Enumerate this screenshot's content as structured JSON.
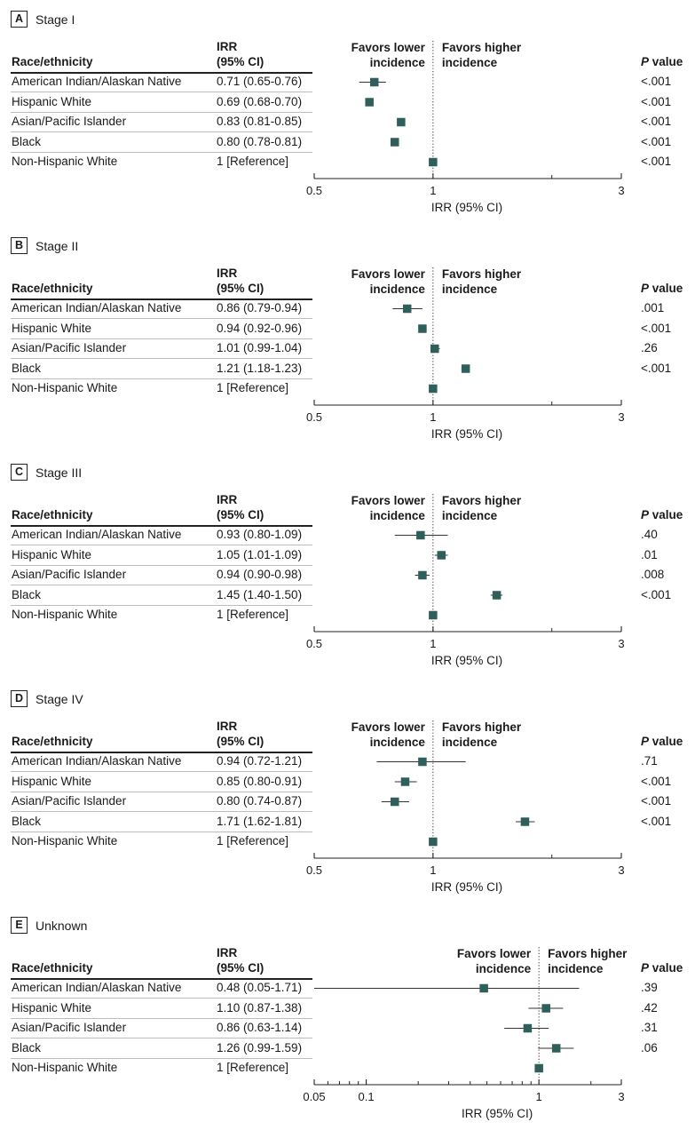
{
  "colors": {
    "marker": "#2e5f5a",
    "text": "#1a1a1a",
    "rule": "#bdbdbd"
  },
  "headers": {
    "race": "Race/ethnicity",
    "irr_line1": "IRR",
    "irr_line2": "(95% CI)",
    "pvalue_italic": "P",
    "pvalue_rest": " value",
    "favors_lower_1": "Favors lower",
    "favors_lower_2": "incidence",
    "favors_higher_1": "Favors higher",
    "favors_higher_2": "incidence",
    "xlabel": "IRR (95% CI)"
  },
  "chart_data": [
    {
      "type": "forest",
      "panel": "A",
      "title": "Stage I",
      "xscale": "log",
      "xlim": [
        0.5,
        3
      ],
      "ticks": [
        {
          "v": 0.5,
          "label": "0.5"
        },
        {
          "v": 1,
          "label": "1"
        },
        {
          "v": 3,
          "label": "3"
        }
      ],
      "minor_ticks": [
        2
      ],
      "reference": 1,
      "xlabel": "IRR (95% CI)",
      "rows": [
        {
          "group": "American Indian/Alaskan Native",
          "irr_text": "0.71 (0.65-0.76)",
          "irr": 0.71,
          "lo": 0.65,
          "hi": 0.76,
          "p": "<.001"
        },
        {
          "group": "Hispanic White",
          "irr_text": "0.69 (0.68-0.70)",
          "irr": 0.69,
          "lo": 0.68,
          "hi": 0.7,
          "p": "<.001"
        },
        {
          "group": "Asian/Pacific Islander",
          "irr_text": "0.83 (0.81-0.85)",
          "irr": 0.83,
          "lo": 0.81,
          "hi": 0.85,
          "p": "<.001"
        },
        {
          "group": "Black",
          "irr_text": "0.80 (0.78-0.81)",
          "irr": 0.8,
          "lo": 0.78,
          "hi": 0.81,
          "p": "<.001"
        },
        {
          "group": "Non-Hispanic White",
          "irr_text": "1 [Reference]",
          "irr": 1,
          "lo": 1,
          "hi": 1,
          "p": "<.001"
        }
      ]
    },
    {
      "type": "forest",
      "panel": "B",
      "title": "Stage II",
      "xscale": "log",
      "xlim": [
        0.5,
        3
      ],
      "ticks": [
        {
          "v": 0.5,
          "label": "0.5"
        },
        {
          "v": 1,
          "label": "1"
        },
        {
          "v": 3,
          "label": "3"
        }
      ],
      "minor_ticks": [
        2
      ],
      "reference": 1,
      "xlabel": "IRR (95% CI)",
      "rows": [
        {
          "group": "American Indian/Alaskan Native",
          "irr_text": "0.86 (0.79-0.94)",
          "irr": 0.86,
          "lo": 0.79,
          "hi": 0.94,
          "p": ".001"
        },
        {
          "group": "Hispanic White",
          "irr_text": "0.94 (0.92-0.96)",
          "irr": 0.94,
          "lo": 0.92,
          "hi": 0.96,
          "p": "<.001"
        },
        {
          "group": "Asian/Pacific Islander",
          "irr_text": "1.01 (0.99-1.04)",
          "irr": 1.01,
          "lo": 0.99,
          "hi": 1.04,
          "p": ".26"
        },
        {
          "group": "Black",
          "irr_text": "1.21 (1.18-1.23)",
          "irr": 1.21,
          "lo": 1.18,
          "hi": 1.23,
          "p": "<.001"
        },
        {
          "group": "Non-Hispanic White",
          "irr_text": "1 [Reference]",
          "irr": 1,
          "lo": 1,
          "hi": 1,
          "p": ""
        }
      ]
    },
    {
      "type": "forest",
      "panel": "C",
      "title": "Stage III",
      "xscale": "log",
      "xlim": [
        0.5,
        3
      ],
      "ticks": [
        {
          "v": 0.5,
          "label": "0.5"
        },
        {
          "v": 1,
          "label": "1"
        },
        {
          "v": 3,
          "label": "3"
        }
      ],
      "minor_ticks": [
        2
      ],
      "reference": 1,
      "xlabel": "IRR (95% CI)",
      "rows": [
        {
          "group": "American Indian/Alaskan Native",
          "irr_text": "0.93 (0.80-1.09)",
          "irr": 0.93,
          "lo": 0.8,
          "hi": 1.09,
          "p": ".40"
        },
        {
          "group": "Hispanic White",
          "irr_text": "1.05 (1.01-1.09)",
          "irr": 1.05,
          "lo": 1.01,
          "hi": 1.09,
          "p": ".01"
        },
        {
          "group": "Asian/Pacific Islander",
          "irr_text": "0.94 (0.90-0.98)",
          "irr": 0.94,
          "lo": 0.9,
          "hi": 0.98,
          "p": ".008"
        },
        {
          "group": "Black",
          "irr_text": "1.45 (1.40-1.50)",
          "irr": 1.45,
          "lo": 1.4,
          "hi": 1.5,
          "p": "<.001"
        },
        {
          "group": "Non-Hispanic White",
          "irr_text": "1 [Reference]",
          "irr": 1,
          "lo": 1,
          "hi": 1,
          "p": ""
        }
      ]
    },
    {
      "type": "forest",
      "panel": "D",
      "title": "Stage IV",
      "xscale": "log",
      "xlim": [
        0.5,
        3
      ],
      "ticks": [
        {
          "v": 0.5,
          "label": "0.5"
        },
        {
          "v": 1,
          "label": "1"
        },
        {
          "v": 3,
          "label": "3"
        }
      ],
      "minor_ticks": [
        2
      ],
      "reference": 1,
      "xlabel": "IRR (95% CI)",
      "rows": [
        {
          "group": "American Indian/Alaskan Native",
          "irr_text": "0.94 (0.72-1.21)",
          "irr": 0.94,
          "lo": 0.72,
          "hi": 1.21,
          "p": ".71"
        },
        {
          "group": "Hispanic White",
          "irr_text": "0.85 (0.80-0.91)",
          "irr": 0.85,
          "lo": 0.8,
          "hi": 0.91,
          "p": "<.001"
        },
        {
          "group": "Asian/Pacific Islander",
          "irr_text": "0.80 (0.74-0.87)",
          "irr": 0.8,
          "lo": 0.74,
          "hi": 0.87,
          "p": "<.001"
        },
        {
          "group": "Black",
          "irr_text": "1.71 (1.62-1.81)",
          "irr": 1.71,
          "lo": 1.62,
          "hi": 1.81,
          "p": "<.001"
        },
        {
          "group": "Non-Hispanic White",
          "irr_text": "1 [Reference]",
          "irr": 1,
          "lo": 1,
          "hi": 1,
          "p": ""
        }
      ]
    },
    {
      "type": "forest",
      "panel": "E",
      "title": "Unknown",
      "xscale": "log",
      "xlim": [
        0.05,
        3
      ],
      "ticks": [
        {
          "v": 0.05,
          "label": "0.05"
        },
        {
          "v": 0.1,
          "label": "0.1"
        },
        {
          "v": 1,
          "label": "1"
        },
        {
          "v": 3,
          "label": "3"
        }
      ],
      "minor_ticks": [
        0.06,
        0.07,
        0.08,
        0.09,
        0.2,
        0.3,
        0.4,
        0.5,
        0.6,
        0.7,
        0.8,
        0.9,
        2
      ],
      "reference": 1,
      "xlabel": "IRR (95% CI)",
      "rows": [
        {
          "group": "American Indian/Alaskan Native",
          "irr_text": "0.48 (0.05-1.71)",
          "irr": 0.48,
          "lo": 0.05,
          "hi": 1.71,
          "p": ".39"
        },
        {
          "group": "Hispanic White",
          "irr_text": "1.10 (0.87-1.38)",
          "irr": 1.1,
          "lo": 0.87,
          "hi": 1.38,
          "p": ".42"
        },
        {
          "group": "Asian/Pacific Islander",
          "irr_text": "0.86 (0.63-1.14)",
          "irr": 0.86,
          "lo": 0.63,
          "hi": 1.14,
          "p": ".31"
        },
        {
          "group": "Black",
          "irr_text": "1.26 (0.99-1.59)",
          "irr": 1.26,
          "lo": 0.99,
          "hi": 1.59,
          "p": ".06"
        },
        {
          "group": "Non-Hispanic White",
          "irr_text": "1 [Reference]",
          "irr": 1,
          "lo": 1,
          "hi": 1,
          "p": ""
        }
      ]
    }
  ]
}
